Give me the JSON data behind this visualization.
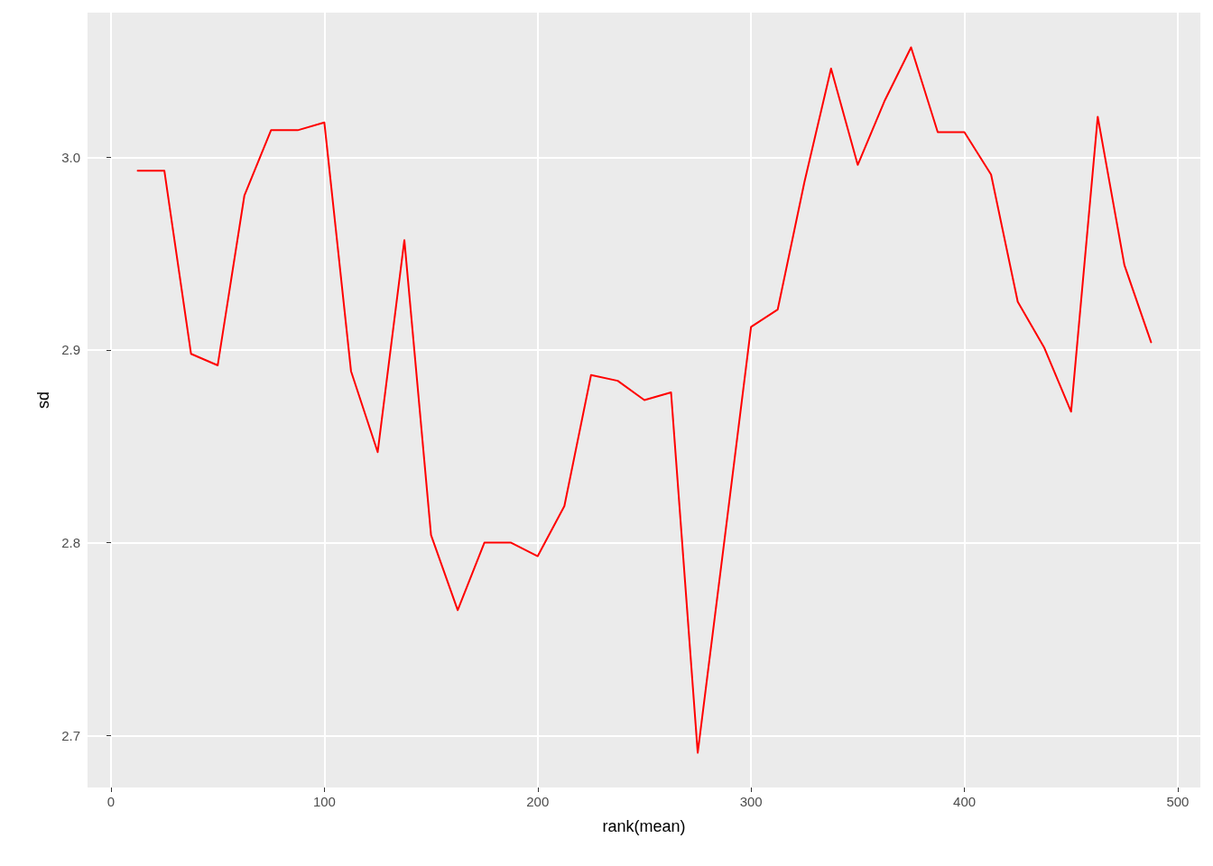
{
  "chart_data": {
    "type": "line",
    "xlabel": "rank(mean)",
    "ylabel": "sd",
    "x": [
      12.5,
      25,
      37.5,
      50,
      62.5,
      75,
      87.5,
      100,
      112.5,
      125,
      137.5,
      150,
      162.5,
      175,
      187.5,
      200,
      212.5,
      225,
      237.5,
      250,
      262.5,
      275,
      287.5,
      300,
      312.5,
      325,
      337.5,
      350,
      362.5,
      375,
      387.5,
      400,
      412.5,
      425,
      437.5,
      450,
      462.5,
      475,
      487.5
    ],
    "series": [
      {
        "color": "#ff0000",
        "values": [
          2.993,
          2.993,
          2.898,
          2.892,
          2.98,
          3.014,
          3.014,
          3.018,
          2.889,
          2.847,
          2.957,
          2.804,
          2.765,
          2.8,
          2.8,
          2.793,
          2.819,
          2.887,
          2.884,
          2.874,
          2.878,
          2.691,
          2.801,
          2.912,
          2.921,
          2.987,
          3.046,
          2.996,
          3.029,
          3.057,
          3.013,
          3.013,
          2.991,
          2.925,
          2.901,
          2.868,
          3.021,
          2.944,
          2.904
        ]
      }
    ],
    "xlim": [
      -11,
      510.6
    ],
    "xticks": [
      0,
      100,
      200,
      300,
      400,
      500
    ],
    "ylim": [
      2.673,
      3.075
    ],
    "yticks": [
      2.7,
      2.8,
      2.9,
      {
        "value": 3,
        "label": "3.0"
      }
    ],
    "grid": true,
    "marker": "none",
    "line_style": "solid"
  }
}
